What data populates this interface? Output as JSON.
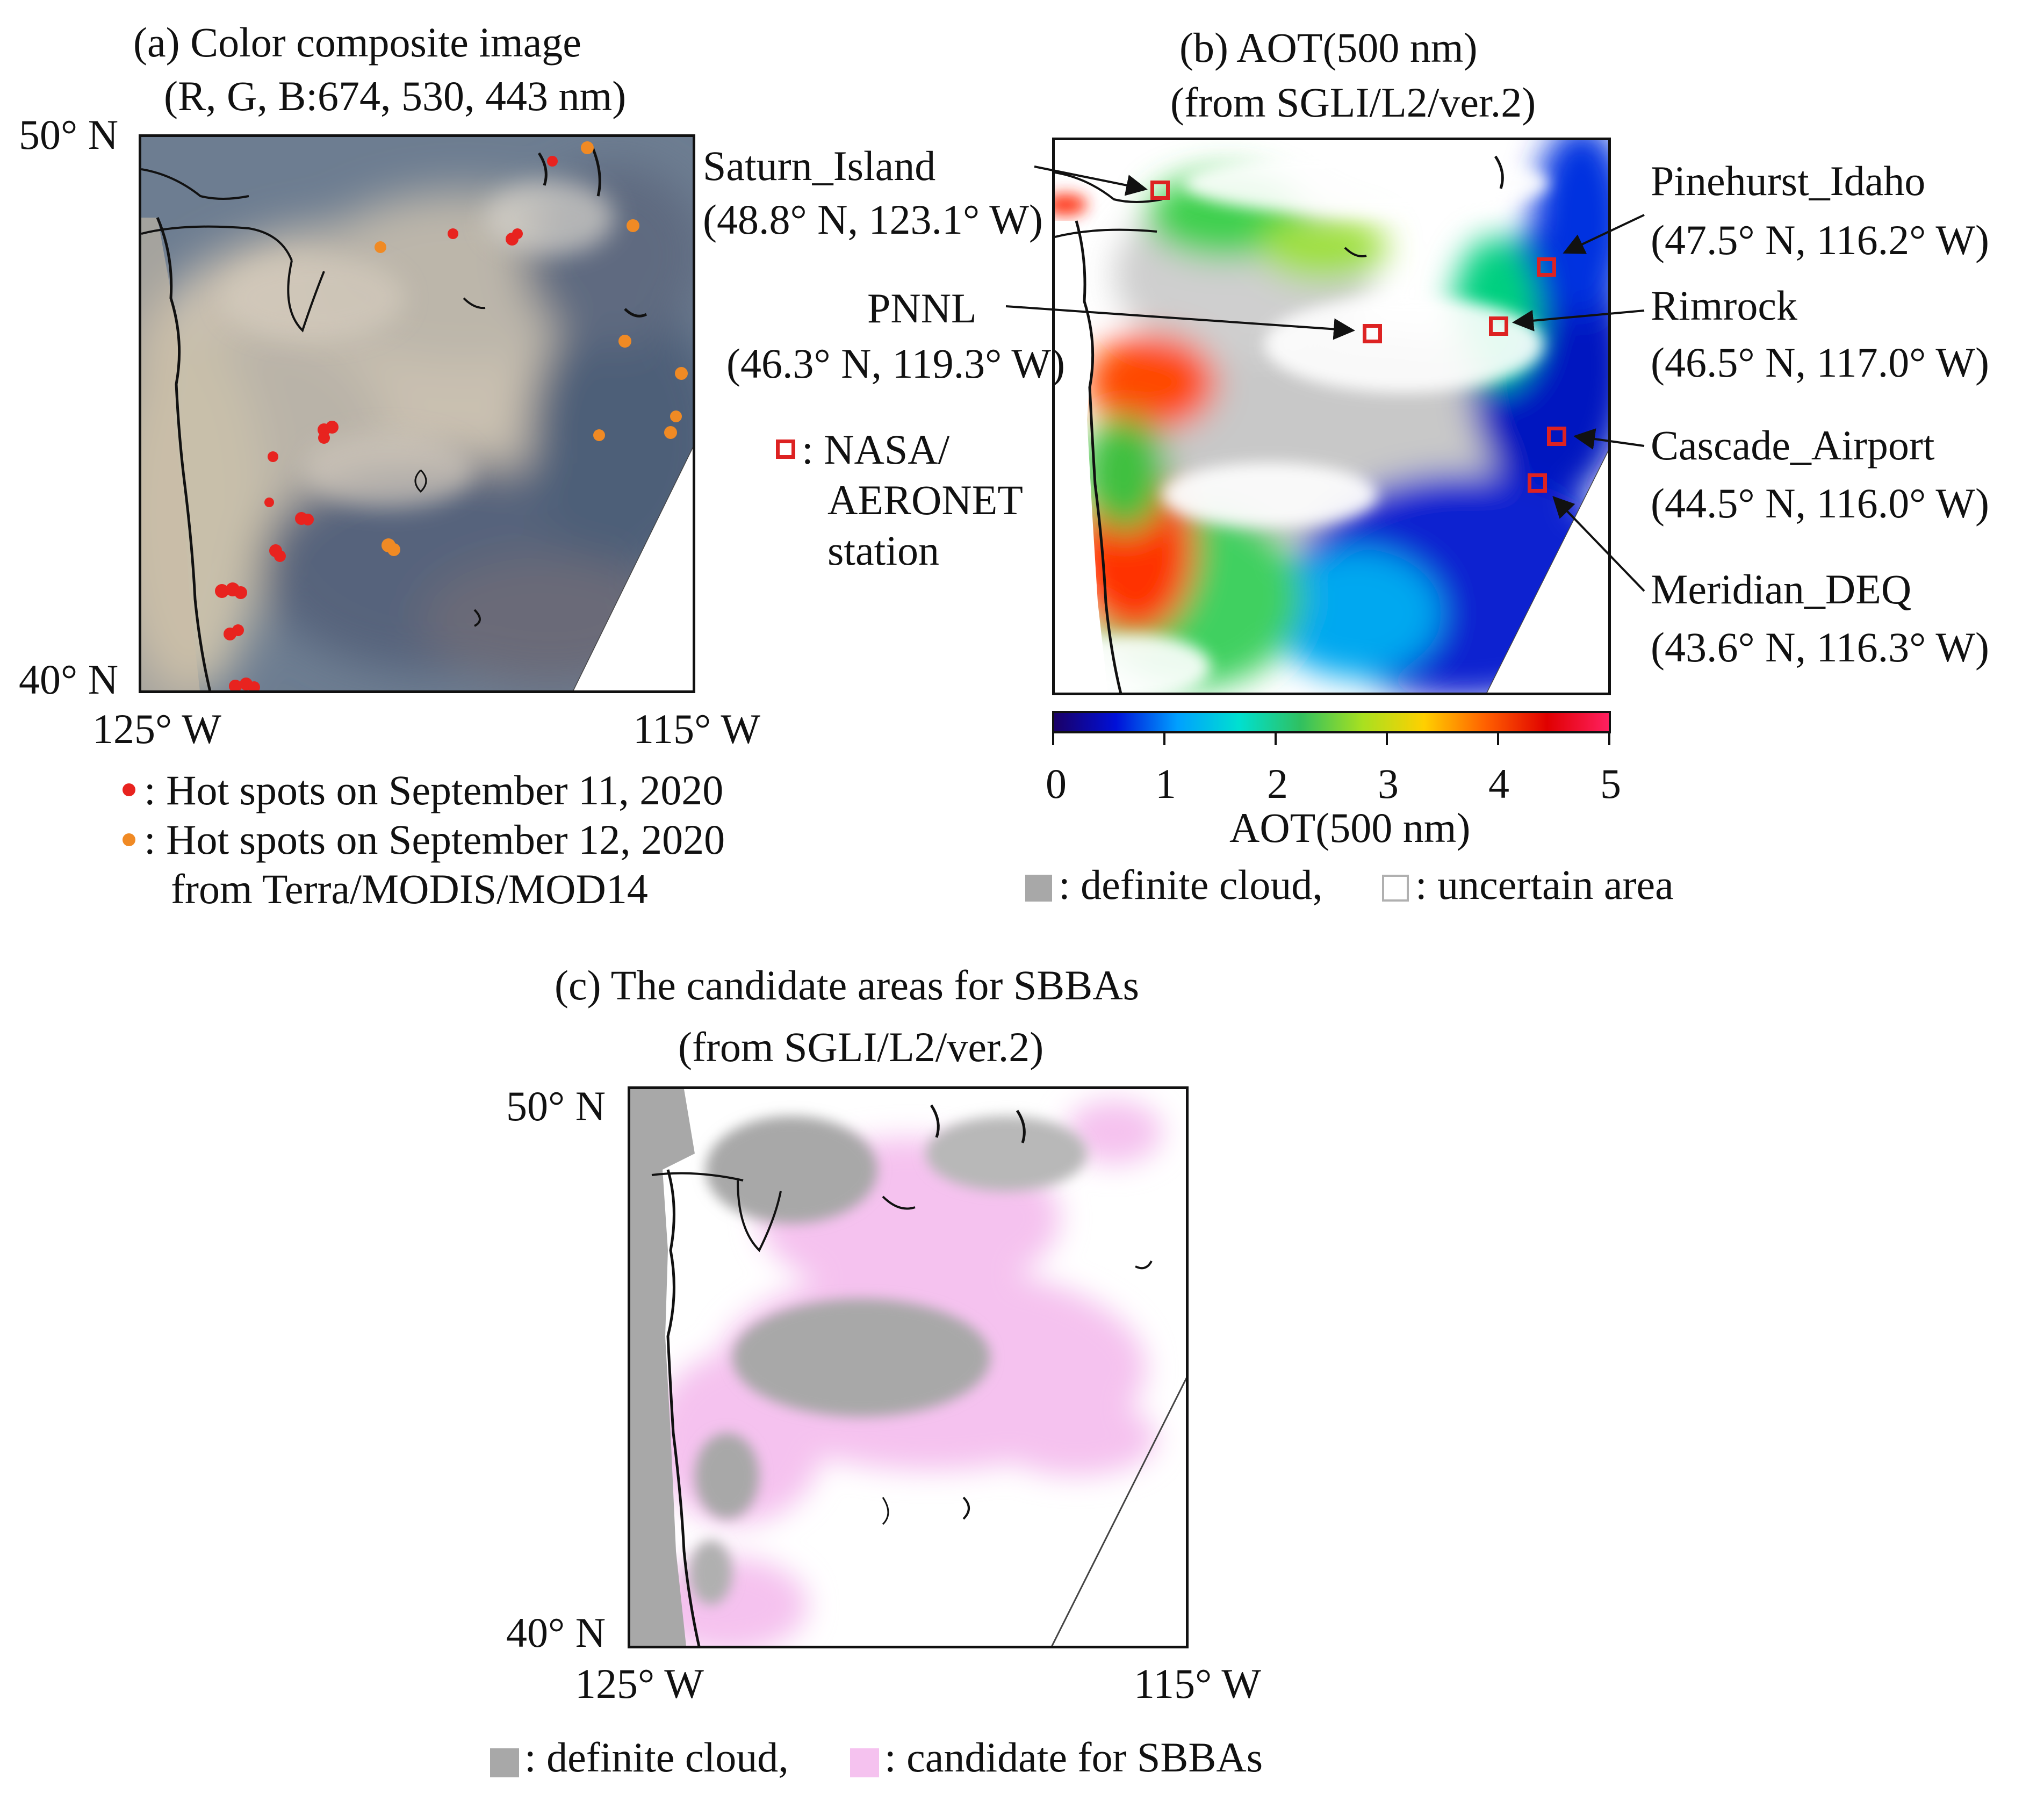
{
  "panel_a": {
    "title_line1": "(a)   Color composite image",
    "title_line2": "(R, G, B:674,  530, 443 nm)",
    "lat_top": "50° N",
    "lat_bottom": "40° N",
    "lon_left": "125° W",
    "lon_right": "115° W",
    "legend": {
      "hot_sep11": ": Hot spots on September 11, 2020",
      "hot_sep12": ": Hot spots on September 12, 2020",
      "source": "from Terra/MODIS/MOD14",
      "color_sep11": "#e8231f",
      "color_sep12": "#f08a24"
    }
  },
  "panel_b": {
    "title_line1": "(b)  AOT(500  nm)",
    "title_line2": "(from  SGLI/L2/ver.2)",
    "colorbar": {
      "ticks": [
        "0",
        "1",
        "2",
        "3",
        "4",
        "5"
      ],
      "label": "AOT(500 nm)",
      "colors": [
        "#1a0066",
        "#0010d8",
        "#00a0ff",
        "#00e0d0",
        "#30c060",
        "#a8e020",
        "#ffd000",
        "#ff6000",
        "#e00000",
        "#ff2060"
      ]
    },
    "legend": {
      "definite_cloud": ": definite cloud,",
      "uncertain_area": ": uncertain area"
    },
    "station_legend_line1": ": NASA/",
    "station_legend_line2": "AERONET",
    "station_legend_line3": "station",
    "stations": [
      {
        "name": "Saturn_Island",
        "coords": "(48.8° N, 123.1° W)",
        "lat": 48.8,
        "lon": -123.1
      },
      {
        "name": "PNNL",
        "coords": "(46.3° N, 119.3° W)",
        "lat": 46.3,
        "lon": -119.3
      },
      {
        "name": "Pinehurst_Idaho",
        "coords": "(47.5° N, 116.2° W)",
        "lat": 47.5,
        "lon": -116.2
      },
      {
        "name": "Rimrock",
        "coords": "(46.5° N, 117.0° W)",
        "lat": 46.5,
        "lon": -117.0
      },
      {
        "name": "Cascade_Airport",
        "coords": "(44.5° N, 116.0° W)",
        "lat": 44.5,
        "lon": -116.0
      },
      {
        "name": "Meridian_DEQ",
        "coords": "(43.6° N, 116.3° W)",
        "lat": 43.6,
        "lon": -116.3
      }
    ]
  },
  "panel_c": {
    "title_line1": "(c) The candidate areas for SBBAs",
    "title_line2": "(from SGLI/L2/ver.2)",
    "lat_top": "50° N",
    "lat_bottom": "40° N",
    "lon_left": "125° W",
    "lon_right": "115° W",
    "legend": {
      "definite_cloud": ": definite cloud,",
      "candidate": ": candidate for SBBAs"
    },
    "colors": {
      "cloud": "#a8a8a8",
      "candidate": "#f5c2ef"
    }
  }
}
